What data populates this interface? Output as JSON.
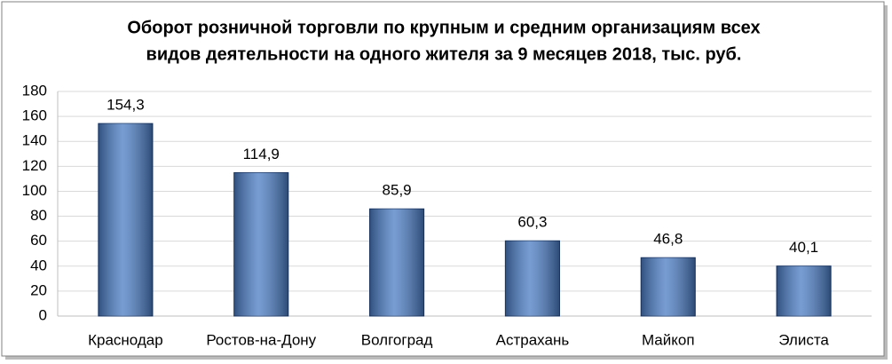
{
  "chart_data": {
    "type": "bar",
    "title": [
      "Оборот розничной торговли по крупным и средним организациям всех",
      "видов деятельности на одного жителя за 9 месяцев 2018, тыс. руб."
    ],
    "categories": [
      "Краснодар",
      "Ростов-на-Дону",
      "Волгоград",
      "Астрахань",
      "Майкоп",
      "Элиста"
    ],
    "values": [
      154.3,
      114.9,
      85.9,
      60.3,
      46.8,
      40.1
    ],
    "value_labels": [
      "154,3",
      "114,9",
      "85,9",
      "60,3",
      "46,8",
      "40,1"
    ],
    "color": "#4a7cc4",
    "ylim": [
      0,
      180
    ],
    "yticks": [
      0,
      20,
      40,
      60,
      80,
      100,
      120,
      140,
      160,
      180
    ],
    "grid": true
  }
}
